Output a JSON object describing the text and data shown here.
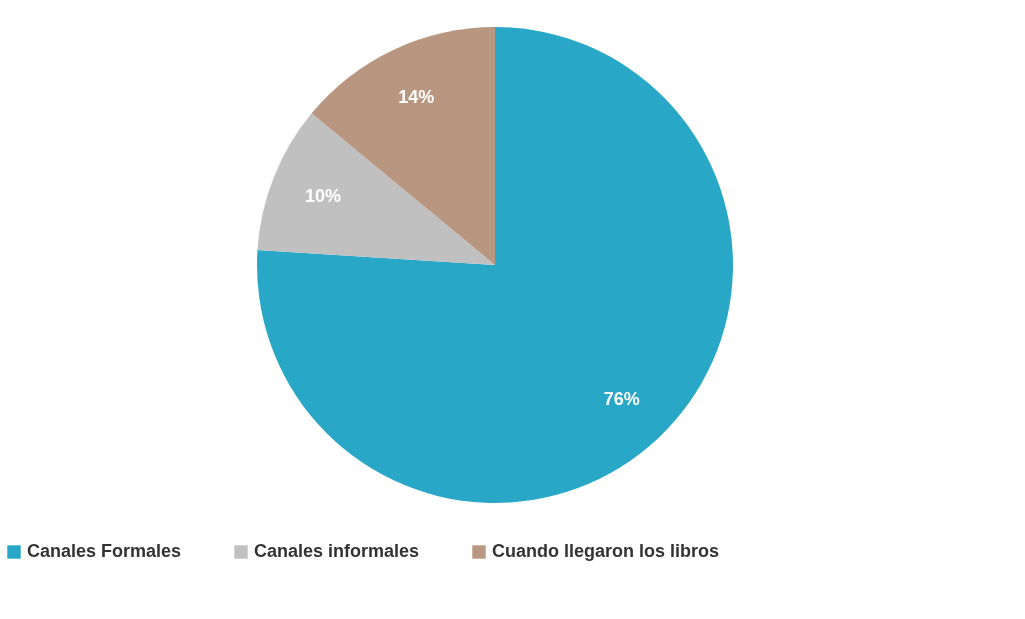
{
  "chart_data": {
    "type": "pie",
    "categories": [
      "Canales Formales",
      "Canales informales",
      "Cuando llegaron los libros"
    ],
    "values": [
      76,
      10,
      14
    ],
    "colors": [
      "#29a7c7",
      "#c0c0c0",
      "#b9967f"
    ],
    "value_labels": [
      "76%",
      "10%",
      "14%"
    ],
    "legend": "bottom"
  }
}
